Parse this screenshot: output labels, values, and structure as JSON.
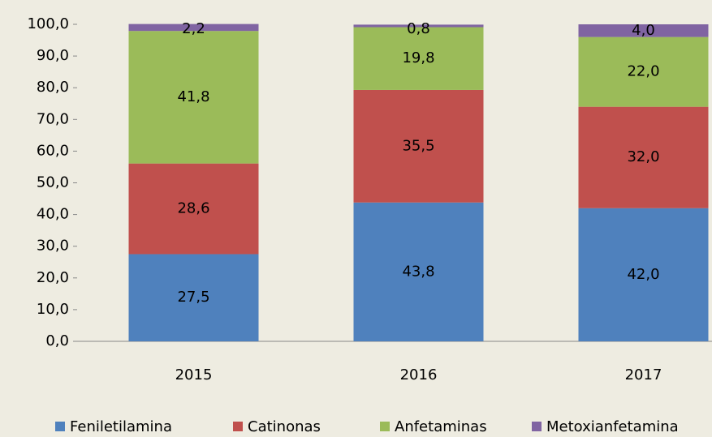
{
  "chart_data": {
    "type": "stacked_bar",
    "categories": [
      "2015",
      "2016",
      "2017"
    ],
    "series": [
      {
        "name": "Feniletilamina",
        "color": "#4f81bd",
        "values": [
          27.5,
          43.8,
          42.0
        ],
        "value_labels": [
          "27,5",
          "43,8",
          "42,0"
        ]
      },
      {
        "name": "Catinonas",
        "color": "#c0504d",
        "values": [
          28.6,
          35.5,
          32.0
        ],
        "value_labels": [
          "28,6",
          "35,5",
          "32,0"
        ]
      },
      {
        "name": "Anfetaminas",
        "color": "#9bbb59",
        "values": [
          41.8,
          19.8,
          22.0
        ],
        "value_labels": [
          "41,8",
          "19,8",
          "22,0"
        ]
      },
      {
        "name": "Metoxianfetamina",
        "color": "#8064a2",
        "values": [
          2.2,
          0.8,
          4.0
        ],
        "value_labels": [
          "2,2",
          "0,8",
          "4,0"
        ]
      }
    ],
    "ylim": [
      0,
      100
    ],
    "yticks": [
      {
        "value": 0,
        "label": "0,0"
      },
      {
        "value": 10,
        "label": "10,0"
      },
      {
        "value": 20,
        "label": "20,0"
      },
      {
        "value": 30,
        "label": "30,0"
      },
      {
        "value": 40,
        "label": "40,0"
      },
      {
        "value": 50,
        "label": "50,0"
      },
      {
        "value": 60,
        "label": "60,0"
      },
      {
        "value": 70,
        "label": "70,0"
      },
      {
        "value": 80,
        "label": "80,0"
      },
      {
        "value": 90,
        "label": "90,0"
      },
      {
        "value": 100,
        "label": "100,0"
      }
    ],
    "legend": "bottom"
  }
}
